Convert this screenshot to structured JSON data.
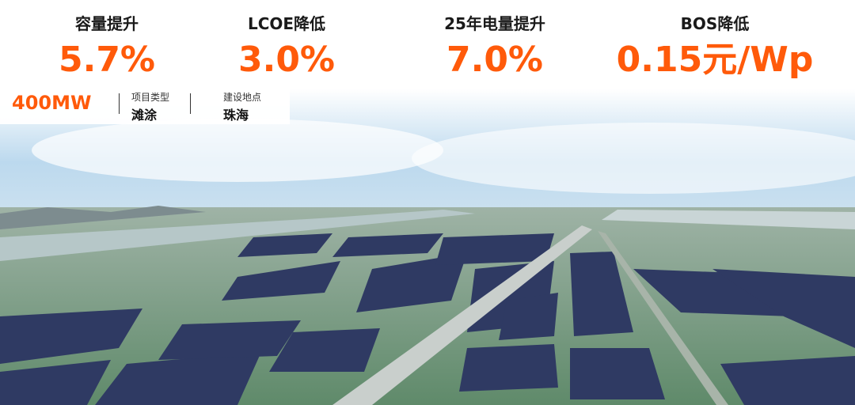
{
  "metrics": [
    {
      "label": "容量提升",
      "value": "5.7%"
    },
    {
      "label": "LCOE降低",
      "value": "3.0%"
    },
    {
      "label": "25年电量提升",
      "value": "7.0%"
    },
    {
      "label": "BOS降低",
      "value": "0.15元/Wp"
    }
  ],
  "project": {
    "capacity": "400MW",
    "type_label": "项目类型",
    "type": "滩涂",
    "location_label": "建设地点",
    "location": "珠海"
  }
}
